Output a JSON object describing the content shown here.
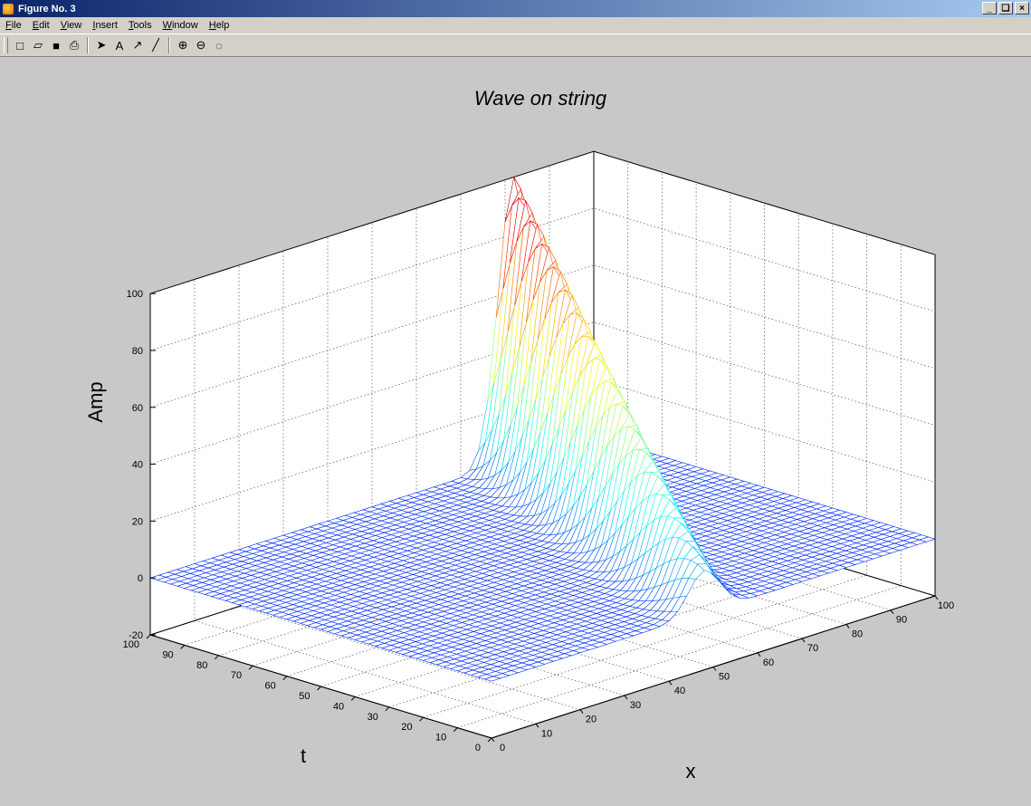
{
  "window": {
    "title": "Figure No. 3",
    "buttons": [
      "_",
      "×"
    ]
  },
  "menu": [
    "File",
    "Edit",
    "View",
    "Insert",
    "Tools",
    "Window",
    "Help"
  ],
  "toolbar": [
    {
      "name": "new-figure-icon",
      "glyph": "□"
    },
    {
      "name": "open-icon",
      "glyph": "▱"
    },
    {
      "name": "save-icon",
      "glyph": "■"
    },
    {
      "name": "print-icon",
      "glyph": "⎙"
    },
    {
      "sep": true
    },
    {
      "name": "select-arrow-icon",
      "glyph": "➤"
    },
    {
      "name": "insert-text-icon",
      "glyph": "A"
    },
    {
      "name": "insert-arrow-icon",
      "glyph": "↗"
    },
    {
      "name": "insert-line-icon",
      "glyph": "╱"
    },
    {
      "sep": true
    },
    {
      "name": "zoom-in-icon",
      "glyph": "⊕"
    },
    {
      "name": "zoom-out-icon",
      "glyph": "⊖"
    },
    {
      "name": "rotate-3d-icon",
      "glyph": "◌"
    }
  ],
  "chart_data": {
    "type": "surface",
    "title": "Wave on string",
    "xlabel": "x",
    "ylabel": "t",
    "zlabel": "Amp",
    "xlim": [
      0,
      100
    ],
    "ylim": [
      0,
      100
    ],
    "zlim": [
      -20,
      100
    ],
    "xticks": [
      0,
      10,
      20,
      30,
      40,
      50,
      60,
      70,
      80,
      90,
      100
    ],
    "yticks": [
      0,
      10,
      20,
      30,
      40,
      50,
      60,
      70,
      80,
      90,
      100
    ],
    "zticks": [
      -20,
      0,
      20,
      40,
      60,
      80,
      100
    ],
    "grid": true,
    "colormap": "jet",
    "pulse": {
      "peak_amp": 100,
      "x_at_t0": 48,
      "x_at_t100": 82,
      "width": 5
    }
  }
}
